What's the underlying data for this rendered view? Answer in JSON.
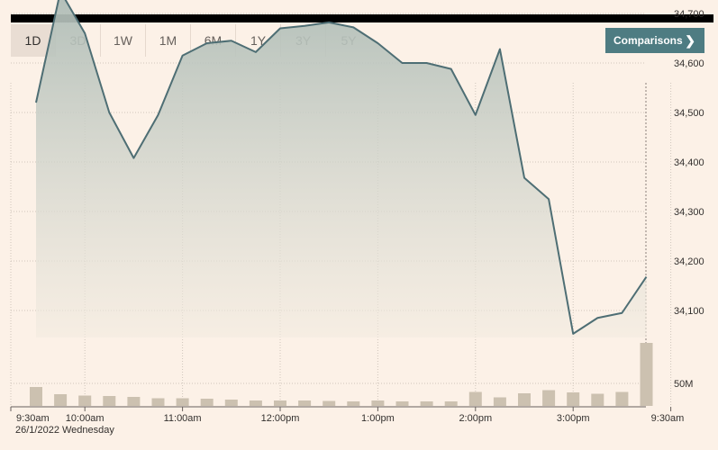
{
  "tabs": [
    "1D",
    "3D",
    "1W",
    "1M",
    "6M",
    "1Y",
    "3Y",
    "5Y"
  ],
  "active_tab": "1D",
  "comparisons_label": "Comparisons",
  "date_label": "26/1/2022 Wednesday",
  "colors": {
    "line": "#4e6e74",
    "area_top": "#aebcb6",
    "area_bottom": "#f2ebe0",
    "volume": "#ccc1b0",
    "button": "#4e7c82",
    "background": "#fcf1e7"
  },
  "chart_data": {
    "type": "area",
    "price": {
      "x": [
        "9:30",
        "9:45",
        "10:00",
        "10:15",
        "10:30",
        "10:45",
        "11:00",
        "11:15",
        "11:30",
        "11:45",
        "12:00",
        "12:15",
        "12:30",
        "12:45",
        "1:00",
        "1:15",
        "1:30",
        "1:45",
        "2:00",
        "2:15",
        "2:30",
        "2:45",
        "3:00",
        "3:15",
        "3:30",
        "3:45",
        "4:00"
      ],
      "y": [
        34520,
        34745,
        34660,
        34500,
        34408,
        34495,
        34615,
        34640,
        34645,
        34622,
        34670,
        34675,
        34682,
        34672,
        34640,
        34600,
        34600,
        34588,
        34495,
        34628,
        34368,
        34325,
        34053,
        34085,
        34095,
        34168,
        null
      ],
      "ylim": [
        34000,
        34800
      ],
      "yticks": [
        34100,
        34200,
        34300,
        34400,
        34500,
        34600,
        34700
      ],
      "ytick_labels": [
        "34,100",
        "34,200",
        "34,300",
        "34,400",
        "34,500",
        "34,600",
        "34,700"
      ]
    },
    "volume": {
      "values": [
        42,
        26,
        23,
        22,
        20,
        17,
        17,
        16,
        14,
        12,
        12,
        12,
        11,
        10,
        12,
        10,
        10,
        10,
        31,
        19,
        28,
        35,
        30,
        27,
        31,
        140
      ],
      "ylim": [
        0,
        150
      ],
      "yticks": [
        50
      ],
      "ytick_labels": [
        "50M"
      ]
    },
    "x_labels": [
      {
        "label": "9:30am",
        "at": "9:30"
      },
      {
        "label": "10:00am",
        "at": "10:00"
      },
      {
        "label": "11:00am",
        "at": "11:00"
      },
      {
        "label": "12:00pm",
        "at": "12:00"
      },
      {
        "label": "1:00pm",
        "at": "1:00"
      },
      {
        "label": "2:00pm",
        "at": "2:00"
      },
      {
        "label": "3:00pm",
        "at": "3:00"
      },
      {
        "label": "9:30am",
        "at": "4:00"
      }
    ],
    "grid": true
  }
}
